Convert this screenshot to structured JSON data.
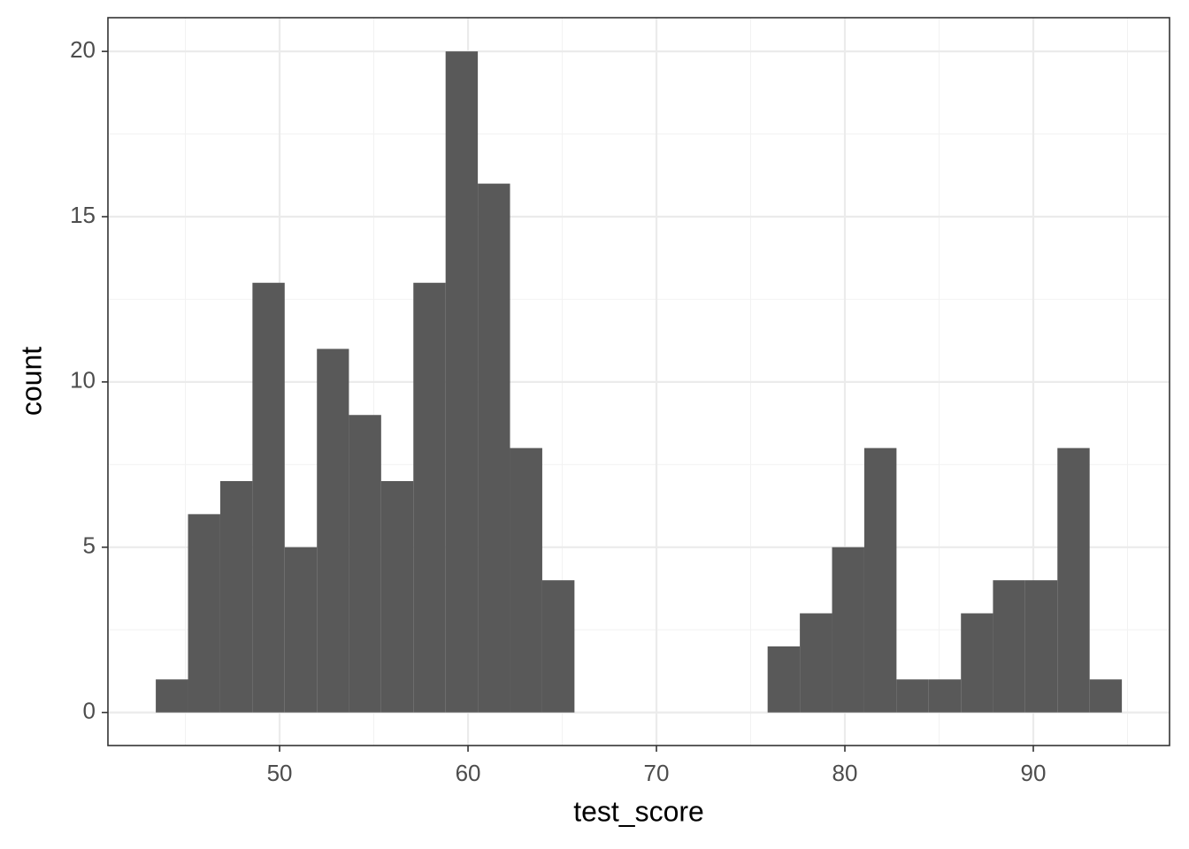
{
  "chart_data": {
    "type": "histogram",
    "x_label": "test_score",
    "y_label": "count",
    "bins": [
      43.43,
      45.14,
      46.85,
      48.56,
      50.27,
      51.98,
      53.68,
      55.39,
      57.1,
      58.81,
      60.52,
      62.23,
      63.94,
      65.65,
      67.36,
      69.07,
      70.77,
      72.48,
      74.19,
      75.9,
      77.61,
      79.32,
      81.03,
      82.74,
      84.45,
      86.16,
      87.86,
      89.57,
      91.28,
      92.99,
      94.7
    ],
    "counts": [
      1,
      6,
      7,
      13,
      5,
      11,
      9,
      7,
      13,
      20,
      16,
      8,
      4,
      0,
      0,
      0,
      0,
      0,
      0,
      2,
      3,
      5,
      8,
      1,
      1,
      3,
      4,
      4,
      8,
      1
    ],
    "color": "#595959",
    "xlim": [
      40.89,
      97.23
    ],
    "xticks": [
      50,
      60,
      70,
      80,
      90
    ],
    "ylim": [
      -1,
      21.02
    ],
    "yticks": [
      0,
      5,
      10,
      15,
      20
    ],
    "grid": true
  }
}
